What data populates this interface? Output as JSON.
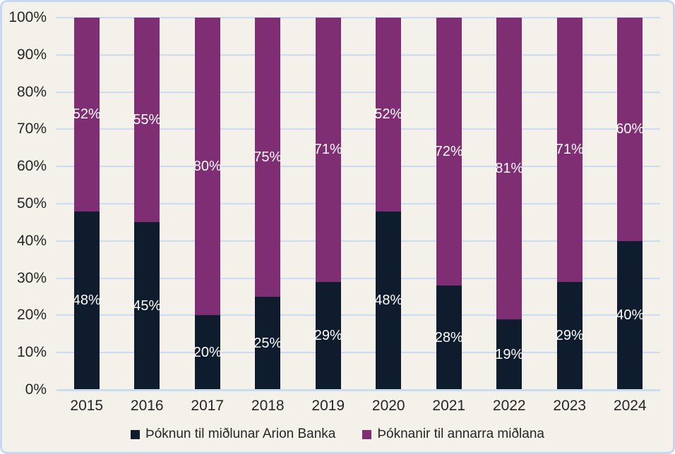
{
  "chart_data": {
    "type": "bar",
    "variant": "stacked-100-percent",
    "title": "",
    "categories": [
      "2015",
      "2016",
      "2017",
      "2018",
      "2019",
      "2020",
      "2021",
      "2022",
      "2023",
      "2024"
    ],
    "series": [
      {
        "name": "Þóknun til miðlunar Arion Banka",
        "color": "#0e1c2e",
        "values": [
          48,
          45,
          20,
          25,
          29,
          48,
          28,
          19,
          29,
          40
        ],
        "labels": [
          "48%",
          "45%",
          "20%",
          "25%",
          "29%",
          "48%",
          "28%",
          "19%",
          "29%",
          "40%"
        ]
      },
      {
        "name": "Þóknanir til annarra miðlana",
        "color": "#802e73",
        "values": [
          52,
          55,
          80,
          75,
          71,
          52,
          72,
          81,
          71,
          60
        ],
        "labels": [
          "52%",
          "55%",
          "80%",
          "75%",
          "71%",
          "52%",
          "72%",
          "81%",
          "71%",
          "60%"
        ]
      }
    ],
    "y_axis": {
      "ticks": [
        "0%",
        "10%",
        "20%",
        "30%",
        "40%",
        "50%",
        "60%",
        "70%",
        "80%",
        "90%",
        "100%"
      ],
      "min": 0,
      "max": 100,
      "step": 10
    },
    "grid": "horizontal",
    "legend_position": "bottom",
    "data_label_color": "#ffffff"
  },
  "colors": {
    "background": "#f4f1ea",
    "frame_border": "#c4d9f0",
    "gridline": "#c9dcf2",
    "axis_line": "#c9dcf2",
    "text": "#262626"
  }
}
